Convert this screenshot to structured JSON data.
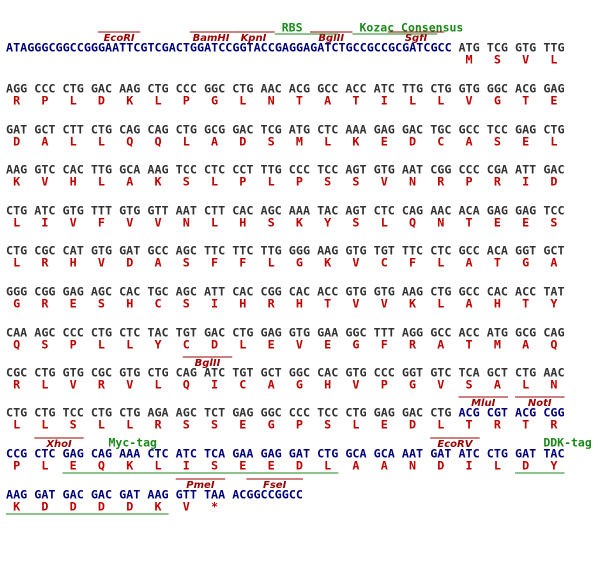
{
  "rows": [
    {
      "prefix": "ATAGGGCGGCCGGGAATTCGTCGACTGGATCCGGTACCGAGGAGATCTGCCGCCGCGATCGCC",
      "codons": [
        "ATG",
        "TCG",
        "GTG",
        "TTG"
      ],
      "aa": [
        "M",
        "S",
        "V",
        "L"
      ],
      "labels": [
        "EcoRI",
        "BamHI",
        "KpnI",
        "BglII",
        "SgfI",
        "RBS",
        "Kozac Consensus"
      ]
    },
    {
      "codons": [
        "AGG",
        "CCC",
        "CTG",
        "GAC",
        "AAG",
        "CTG",
        "CCC",
        "GGC",
        "CTG",
        "AAC",
        "ACG",
        "GCC",
        "ACC",
        "ATC",
        "TTG",
        "CTG",
        "GTG",
        "GGC",
        "ACG",
        "GAG"
      ],
      "aa": [
        "R",
        "P",
        "L",
        "D",
        "K",
        "L",
        "P",
        "G",
        "L",
        "N",
        "T",
        "A",
        "T",
        "I",
        "L",
        "L",
        "V",
        "G",
        "T",
        "E"
      ]
    },
    {
      "codons": [
        "GAT",
        "GCT",
        "CTT",
        "CTG",
        "CAG",
        "CAG",
        "CTG",
        "GCG",
        "GAC",
        "TCG",
        "ATG",
        "CTC",
        "AAA",
        "GAG",
        "GAC",
        "TGC",
        "GCC",
        "TCC",
        "GAG",
        "CTG"
      ],
      "aa": [
        "D",
        "A",
        "L",
        "L",
        "Q",
        "Q",
        "L",
        "A",
        "D",
        "S",
        "M",
        "L",
        "K",
        "E",
        "D",
        "C",
        "A",
        "S",
        "E",
        "L"
      ]
    },
    {
      "codons": [
        "AAG",
        "GTC",
        "CAC",
        "TTG",
        "GCA",
        "AAG",
        "TCC",
        "CTC",
        "CCT",
        "TTG",
        "CCC",
        "TCC",
        "AGT",
        "GTG",
        "AAT",
        "CGG",
        "CCC",
        "CGA",
        "ATT",
        "GAC"
      ],
      "aa": [
        "K",
        "V",
        "H",
        "L",
        "A",
        "K",
        "S",
        "L",
        "P",
        "L",
        "P",
        "S",
        "S",
        "V",
        "N",
        "R",
        "P",
        "R",
        "I",
        "D"
      ]
    },
    {
      "codons": [
        "CTG",
        "ATC",
        "GTG",
        "TTT",
        "GTG",
        "GTT",
        "AAT",
        "CTT",
        "CAC",
        "AGC",
        "AAA",
        "TAC",
        "AGT",
        "CTC",
        "CAG",
        "AAC",
        "ACA",
        "GAG",
        "GAG",
        "TCC"
      ],
      "aa": [
        "L",
        "I",
        "V",
        "F",
        "V",
        "V",
        "N",
        "L",
        "H",
        "S",
        "K",
        "Y",
        "S",
        "L",
        "Q",
        "N",
        "T",
        "E",
        "E",
        "S"
      ]
    },
    {
      "codons": [
        "CTG",
        "CGC",
        "CAT",
        "GTG",
        "GAT",
        "GCC",
        "AGC",
        "TTC",
        "TTC",
        "TTG",
        "GGG",
        "AAG",
        "GTG",
        "TGT",
        "TTC",
        "CTC",
        "GCC",
        "ACA",
        "GGT",
        "GCT"
      ],
      "aa": [
        "L",
        "R",
        "H",
        "V",
        "D",
        "A",
        "S",
        "F",
        "F",
        "L",
        "G",
        "K",
        "V",
        "C",
        "F",
        "L",
        "A",
        "T",
        "G",
        "A"
      ]
    },
    {
      "codons": [
        "GGG",
        "CGG",
        "GAG",
        "AGC",
        "CAC",
        "TGC",
        "AGC",
        "ATT",
        "CAC",
        "CGG",
        "CAC",
        "ACC",
        "GTG",
        "GTG",
        "AAG",
        "CTG",
        "GCC",
        "CAC",
        "ACC",
        "TAT"
      ],
      "aa": [
        "G",
        "R",
        "E",
        "S",
        "H",
        "C",
        "S",
        "I",
        "H",
        "R",
        "H",
        "T",
        "V",
        "V",
        "K",
        "L",
        "A",
        "H",
        "T",
        "Y"
      ]
    },
    {
      "codons": [
        "CAA",
        "AGC",
        "CCC",
        "CTG",
        "CTC",
        "TAC",
        "TGT",
        "GAC",
        "CTG",
        "GAG",
        "GTG",
        "GAA",
        "GGC",
        "TTT",
        "AGG",
        "GCC",
        "ACC",
        "ATG",
        "GCG",
        "CAG"
      ],
      "aa": [
        "Q",
        "S",
        "P",
        "L",
        "L",
        "Y",
        "C",
        "D",
        "L",
        "E",
        "V",
        "E",
        "G",
        "F",
        "R",
        "A",
        "T",
        "M",
        "A",
        "Q"
      ]
    },
    {
      "codons": [
        "CGC",
        "CTG",
        "GTG",
        "CGC",
        "GTG",
        "CTG",
        "CAG",
        "ATC",
        "TGT",
        "GCT",
        "GGC",
        "CAC",
        "GTG",
        "CCC",
        "GGT",
        "GTC",
        "TCA",
        "GCT",
        "CTG",
        "AAC"
      ],
      "aa": [
        "R",
        "L",
        "V",
        "R",
        "V",
        "L",
        "Q",
        "I",
        "C",
        "A",
        "G",
        "H",
        "V",
        "P",
        "G",
        "V",
        "S",
        "A",
        "L",
        "N"
      ],
      "labels": [
        "BglII"
      ]
    },
    {
      "codons": [
        "CTG",
        "CTG",
        "TCC",
        "CTG",
        "CTG",
        "AGA",
        "AGC",
        "TCT",
        "GAG",
        "GGC",
        "CCC",
        "TCC",
        "CTG",
        "GAG",
        "GAC",
        "CTG",
        "ACG",
        "CGT",
        "ACG",
        "CGG"
      ],
      "aa": [
        "L",
        "L",
        "S",
        "L",
        "L",
        "R",
        "S",
        "S",
        "E",
        "G",
        "P",
        "S",
        "L",
        "E",
        "D",
        "L",
        "T",
        "R",
        "T",
        "R"
      ],
      "labels": [
        "MluI",
        "NotI"
      ]
    },
    {
      "codons": [
        "CCG",
        "CTC",
        "GAG",
        "CAG",
        "AAA",
        "CTC",
        "ATC",
        "TCA",
        "GAA",
        "GAG",
        "GAT",
        "CTG",
        "GCA",
        "GCA",
        "AAT",
        "GAT",
        "ATC",
        "CTG",
        "GAT",
        "TAC"
      ],
      "aa": [
        "P",
        "L",
        "E",
        "Q",
        "K",
        "L",
        "I",
        "S",
        "E",
        "E",
        "D",
        "L",
        "A",
        "A",
        "N",
        "D",
        "I",
        "L",
        "D",
        "Y"
      ],
      "labels": [
        "XhoI",
        "Myc-tag",
        "EcoRV",
        "DDK-tag"
      ]
    },
    {
      "codons": [
        "AAG",
        "GAT",
        "GAC",
        "GAC",
        "GAT",
        "AAG",
        "GTT",
        "TAA"
      ],
      "suffix": "ACGGCCGGCC",
      "aa": [
        "K",
        "D",
        "D",
        "D",
        "D",
        "K",
        "V",
        "*"
      ],
      "labels": [
        "PmeI",
        "FseI"
      ]
    }
  ]
}
